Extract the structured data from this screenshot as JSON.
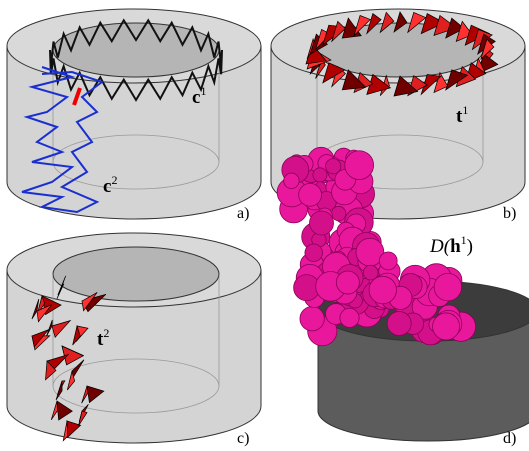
{
  "panels": [
    {
      "label": "a)",
      "annotations": [
        {
          "base": "c",
          "sup": "1"
        },
        {
          "base": "c",
          "sup": "2"
        }
      ]
    },
    {
      "label": "b)",
      "annotations": [
        {
          "base": "t",
          "sup": "1"
        }
      ]
    },
    {
      "label": "c)",
      "annotations": [
        {
          "base": "t",
          "sup": "2"
        }
      ]
    },
    {
      "label": "d)",
      "annotations": [
        {
          "pre": "D(",
          "base": "h",
          "sup": "1",
          "post": ")"
        }
      ]
    }
  ]
}
